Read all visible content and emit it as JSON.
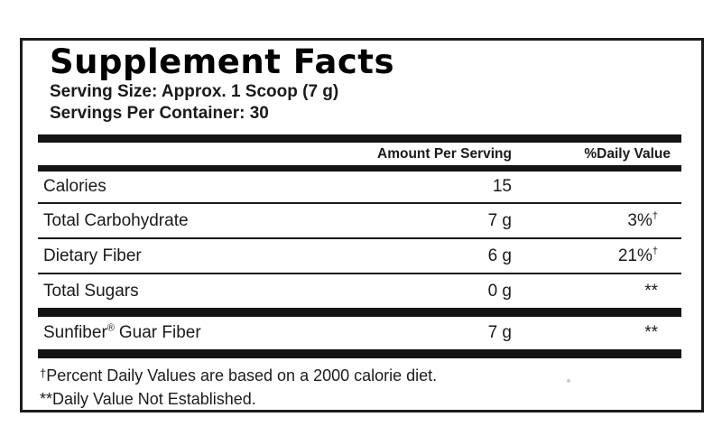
{
  "colors": {
    "ink": "#1a1a1a",
    "rule": "#141414",
    "border": "#1c1c1c",
    "artifact_dot": "#cccccc"
  },
  "panel": {
    "title": "Supplement Facts",
    "serving_size": "Serving Size: Approx. 1 Scoop (7 g)",
    "servings_per_container": "Servings Per Container: 30",
    "header": {
      "amount": "Amount Per Serving",
      "daily_value": "%Daily Value"
    },
    "rows": [
      {
        "name": "Calories",
        "amount": "15",
        "daily_value": "",
        "dagger": ""
      },
      {
        "name": "Total Carbohydrate",
        "amount": "7 g",
        "daily_value": "3%",
        "dagger": "†"
      },
      {
        "name": "Dietary Fiber",
        "amount": "6 g",
        "daily_value": "21%",
        "dagger": "†"
      },
      {
        "name": "Total Sugars",
        "amount": "0 g",
        "daily_value": "**",
        "dagger": ""
      },
      {
        "name": "Sunfiber® Guar Fiber",
        "brand": "Sunfiber",
        "reg_mark": "®",
        "name_rest": "Guar Fiber",
        "amount": "7 g",
        "daily_value": "**",
        "dagger": ""
      }
    ],
    "footnotes": {
      "dagger_symbol": "†",
      "dagger_text": "Percent Daily Values are based on a 2000 calorie diet.",
      "not_established": "**Daily Value Not Established."
    }
  }
}
